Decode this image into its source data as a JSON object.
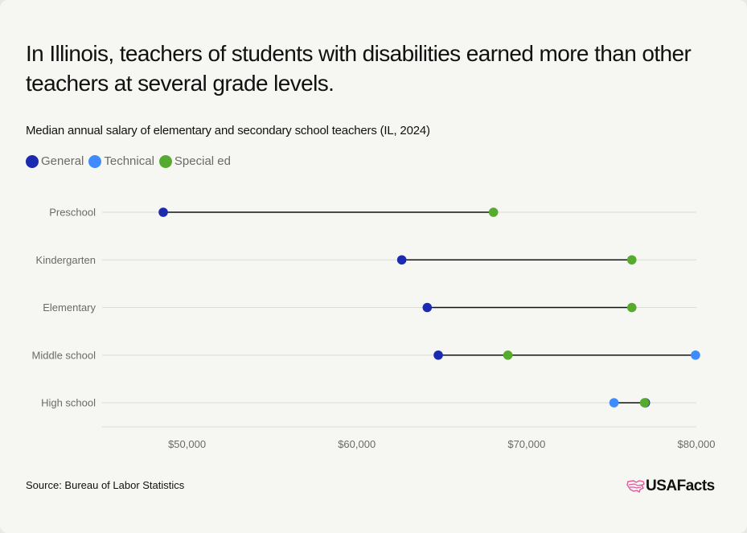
{
  "title": "In Illinois, teachers of students with disabilities earned more than other teachers at several grade levels.",
  "subtitle": "Median annual salary of elementary and secondary school teachers (IL, 2024)",
  "legend": [
    {
      "name": "General",
      "color": "#1b2bb0"
    },
    {
      "name": "Technical",
      "color": "#3d8bfd"
    },
    {
      "name": "Special ed",
      "color": "#56ab2f"
    }
  ],
  "source": "Source: Bureau of Labor Statistics",
  "logo": {
    "text": "USAFacts",
    "icon": "usa-map-icon",
    "color": "#e05a9b"
  },
  "chart_data": {
    "type": "dumbbell",
    "title": "Median annual salary of elementary and secondary school teachers (IL, 2024)",
    "xlabel": "",
    "ylabel": "",
    "xlim": [
      45000,
      80000
    ],
    "x_ticks": [
      50000,
      60000,
      70000,
      80000
    ],
    "x_tick_labels": [
      "$50,000",
      "$60,000",
      "$70,000",
      "$80,000"
    ],
    "grid": true,
    "legend_position": "top-left",
    "categories": [
      "Preschool",
      "Kindergarten",
      "Elementary",
      "Middle school",
      "High school"
    ],
    "series": [
      {
        "name": "General",
        "color": "#1b2bb0",
        "values": [
          48600,
          62650,
          64150,
          64800,
          77000
        ]
      },
      {
        "name": "Technical",
        "color": "#3d8bfd",
        "values": [
          null,
          null,
          null,
          79950,
          75150
        ]
      },
      {
        "name": "Special ed",
        "color": "#56ab2f",
        "values": [
          68050,
          76200,
          76200,
          68900,
          76950
        ]
      }
    ]
  }
}
